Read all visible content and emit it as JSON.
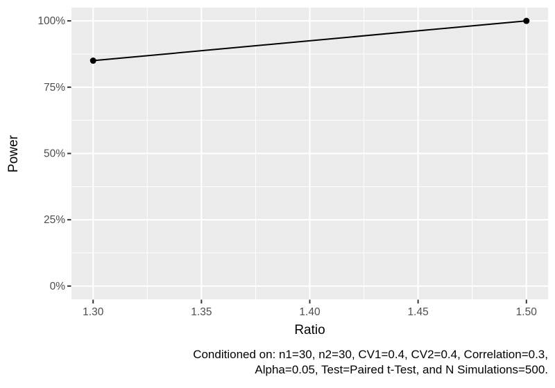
{
  "chart_data": {
    "type": "line",
    "title": "",
    "xlabel": "Ratio",
    "ylabel": "Power",
    "x": [
      1.3,
      1.5
    ],
    "series": [
      {
        "name": "Power",
        "values": [
          0.85,
          1.0
        ]
      }
    ],
    "x_ticks": [
      1.3,
      1.35,
      1.4,
      1.45,
      1.5
    ],
    "x_tick_labels": [
      "1.30",
      "1.35",
      "1.40",
      "1.45",
      "1.50"
    ],
    "y_ticks": [
      0,
      0.25,
      0.5,
      0.75,
      1.0
    ],
    "y_tick_labels": [
      "0%",
      "25%",
      "50%",
      "75%",
      "100%"
    ],
    "x_minor_ticks": [
      1.325,
      1.375,
      1.425,
      1.475
    ],
    "y_minor_ticks": [
      0.125,
      0.375,
      0.625,
      0.875
    ],
    "xlim": [
      1.29,
      1.51
    ],
    "ylim": [
      -0.05,
      1.05
    ],
    "grid": true,
    "legend_position": "none",
    "caption": "Conditioned on: n1=30, n2=30, CV1=0.4, CV2=0.4, Correlation=0.3, Alpha=0.05, Test=Paired t-Test, and N Simulations=500."
  },
  "caption": {
    "line1": "Conditioned on: n1=30, n2=30, CV1=0.4, CV2=0.4, Correlation=0.3,",
    "line2": "Alpha=0.05, Test=Paired t-Test, and N Simulations=500."
  },
  "colors": {
    "panel_background": "#EBEBEB",
    "grid_major": "#FFFFFF",
    "grid_minor": "#FFFFFF",
    "series_line": "#000000",
    "data_point": "#000000",
    "tick_label": "#4D4D4D",
    "tick_mark": "#333333",
    "axis_title": "#000000",
    "caption_text": "#000000"
  }
}
